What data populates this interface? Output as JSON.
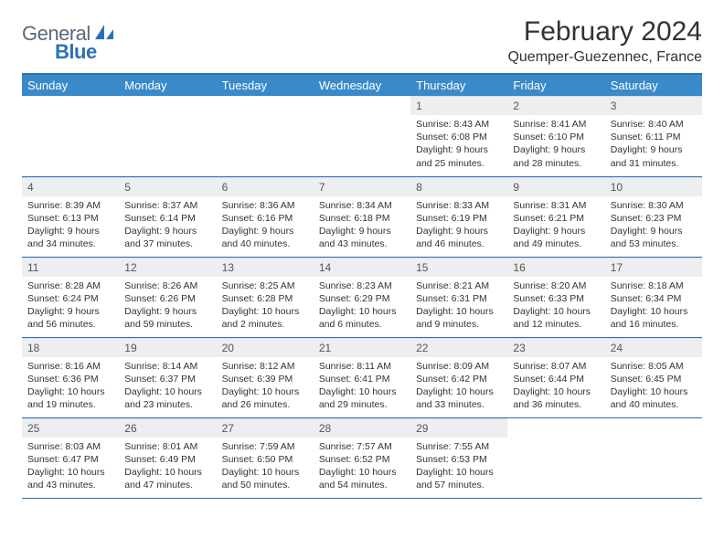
{
  "logo": {
    "text1": "General",
    "text2": "Blue"
  },
  "title": "February 2024",
  "location": "Quemper-Guezennec, France",
  "colors": {
    "header_bg": "#3a8ac9",
    "header_text": "#ffffff",
    "border": "#2a72b5",
    "daynum_bg": "#eceef0",
    "page_bg": "#ffffff",
    "text": "#333333",
    "logo_gray": "#5a6a7a",
    "logo_blue": "#2a72b5"
  },
  "day_headers": [
    "Sunday",
    "Monday",
    "Tuesday",
    "Wednesday",
    "Thursday",
    "Friday",
    "Saturday"
  ],
  "weeks": [
    [
      null,
      null,
      null,
      null,
      {
        "n": "1",
        "sunrise": "8:43 AM",
        "sunset": "6:08 PM",
        "daylight_a": "9 hours",
        "daylight_b": "and 25 minutes."
      },
      {
        "n": "2",
        "sunrise": "8:41 AM",
        "sunset": "6:10 PM",
        "daylight_a": "9 hours",
        "daylight_b": "and 28 minutes."
      },
      {
        "n": "3",
        "sunrise": "8:40 AM",
        "sunset": "6:11 PM",
        "daylight_a": "9 hours",
        "daylight_b": "and 31 minutes."
      }
    ],
    [
      {
        "n": "4",
        "sunrise": "8:39 AM",
        "sunset": "6:13 PM",
        "daylight_a": "9 hours",
        "daylight_b": "and 34 minutes."
      },
      {
        "n": "5",
        "sunrise": "8:37 AM",
        "sunset": "6:14 PM",
        "daylight_a": "9 hours",
        "daylight_b": "and 37 minutes."
      },
      {
        "n": "6",
        "sunrise": "8:36 AM",
        "sunset": "6:16 PM",
        "daylight_a": "9 hours",
        "daylight_b": "and 40 minutes."
      },
      {
        "n": "7",
        "sunrise": "8:34 AM",
        "sunset": "6:18 PM",
        "daylight_a": "9 hours",
        "daylight_b": "and 43 minutes."
      },
      {
        "n": "8",
        "sunrise": "8:33 AM",
        "sunset": "6:19 PM",
        "daylight_a": "9 hours",
        "daylight_b": "and 46 minutes."
      },
      {
        "n": "9",
        "sunrise": "8:31 AM",
        "sunset": "6:21 PM",
        "daylight_a": "9 hours",
        "daylight_b": "and 49 minutes."
      },
      {
        "n": "10",
        "sunrise": "8:30 AM",
        "sunset": "6:23 PM",
        "daylight_a": "9 hours",
        "daylight_b": "and 53 minutes."
      }
    ],
    [
      {
        "n": "11",
        "sunrise": "8:28 AM",
        "sunset": "6:24 PM",
        "daylight_a": "9 hours",
        "daylight_b": "and 56 minutes."
      },
      {
        "n": "12",
        "sunrise": "8:26 AM",
        "sunset": "6:26 PM",
        "daylight_a": "9 hours",
        "daylight_b": "and 59 minutes."
      },
      {
        "n": "13",
        "sunrise": "8:25 AM",
        "sunset": "6:28 PM",
        "daylight_a": "10 hours",
        "daylight_b": "and 2 minutes."
      },
      {
        "n": "14",
        "sunrise": "8:23 AM",
        "sunset": "6:29 PM",
        "daylight_a": "10 hours",
        "daylight_b": "and 6 minutes."
      },
      {
        "n": "15",
        "sunrise": "8:21 AM",
        "sunset": "6:31 PM",
        "daylight_a": "10 hours",
        "daylight_b": "and 9 minutes."
      },
      {
        "n": "16",
        "sunrise": "8:20 AM",
        "sunset": "6:33 PM",
        "daylight_a": "10 hours",
        "daylight_b": "and 12 minutes."
      },
      {
        "n": "17",
        "sunrise": "8:18 AM",
        "sunset": "6:34 PM",
        "daylight_a": "10 hours",
        "daylight_b": "and 16 minutes."
      }
    ],
    [
      {
        "n": "18",
        "sunrise": "8:16 AM",
        "sunset": "6:36 PM",
        "daylight_a": "10 hours",
        "daylight_b": "and 19 minutes."
      },
      {
        "n": "19",
        "sunrise": "8:14 AM",
        "sunset": "6:37 PM",
        "daylight_a": "10 hours",
        "daylight_b": "and 23 minutes."
      },
      {
        "n": "20",
        "sunrise": "8:12 AM",
        "sunset": "6:39 PM",
        "daylight_a": "10 hours",
        "daylight_b": "and 26 minutes."
      },
      {
        "n": "21",
        "sunrise": "8:11 AM",
        "sunset": "6:41 PM",
        "daylight_a": "10 hours",
        "daylight_b": "and 29 minutes."
      },
      {
        "n": "22",
        "sunrise": "8:09 AM",
        "sunset": "6:42 PM",
        "daylight_a": "10 hours",
        "daylight_b": "and 33 minutes."
      },
      {
        "n": "23",
        "sunrise": "8:07 AM",
        "sunset": "6:44 PM",
        "daylight_a": "10 hours",
        "daylight_b": "and 36 minutes."
      },
      {
        "n": "24",
        "sunrise": "8:05 AM",
        "sunset": "6:45 PM",
        "daylight_a": "10 hours",
        "daylight_b": "and 40 minutes."
      }
    ],
    [
      {
        "n": "25",
        "sunrise": "8:03 AM",
        "sunset": "6:47 PM",
        "daylight_a": "10 hours",
        "daylight_b": "and 43 minutes."
      },
      {
        "n": "26",
        "sunrise": "8:01 AM",
        "sunset": "6:49 PM",
        "daylight_a": "10 hours",
        "daylight_b": "and 47 minutes."
      },
      {
        "n": "27",
        "sunrise": "7:59 AM",
        "sunset": "6:50 PM",
        "daylight_a": "10 hours",
        "daylight_b": "and 50 minutes."
      },
      {
        "n": "28",
        "sunrise": "7:57 AM",
        "sunset": "6:52 PM",
        "daylight_a": "10 hours",
        "daylight_b": "and 54 minutes."
      },
      {
        "n": "29",
        "sunrise": "7:55 AM",
        "sunset": "6:53 PM",
        "daylight_a": "10 hours",
        "daylight_b": "and 57 minutes."
      },
      null,
      null
    ]
  ],
  "labels": {
    "sunrise": "Sunrise:",
    "sunset": "Sunset:",
    "daylight": "Daylight:"
  }
}
